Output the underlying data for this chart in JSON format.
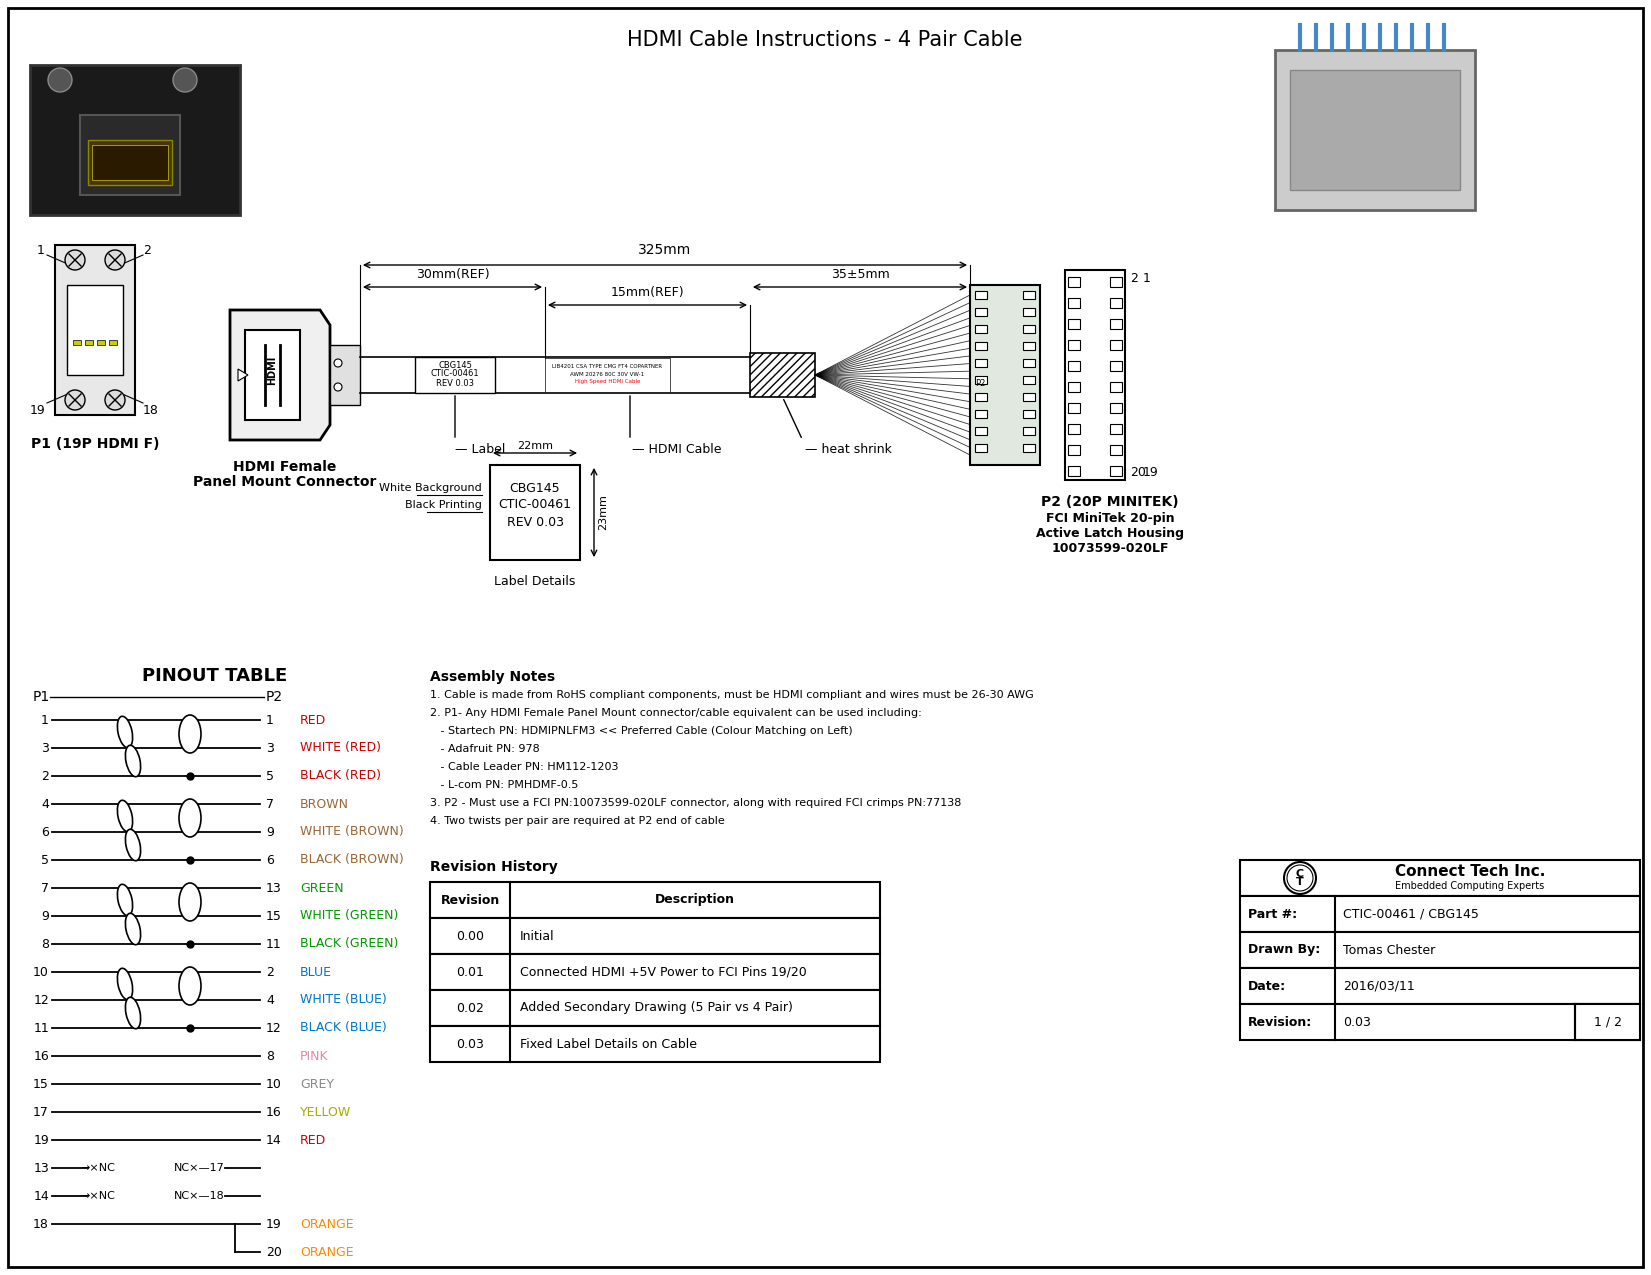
{
  "title": "HDMI Cable Instructions - 4 Pair Cable",
  "bg": "#ffffff",
  "pinout_title": "PINOUT TABLE",
  "p1_label": "P1 (19P HDMI F)",
  "p2_label": "P2 (20P MINITEK)",
  "p2_desc1": "FCI MiniTek 20-pin",
  "p2_desc2": "Active Latch Housing",
  "p2_desc3": "10073599-020LF",
  "connector_label_line1": "HDMI Female",
  "connector_label_line2": "Panel Mount Connector",
  "pinout_rows": [
    {
      "p1": "1",
      "p2": "1",
      "label": "RED",
      "color": "#cc0000"
    },
    {
      "p1": "3",
      "p2": "3",
      "label": "WHITE (RED)",
      "color": "#cc0000"
    },
    {
      "p1": "2",
      "p2": "5",
      "label": "BLACK (RED)",
      "color": "#cc0000"
    },
    {
      "p1": "4",
      "p2": "7",
      "label": "BROWN",
      "color": "#996633"
    },
    {
      "p1": "6",
      "p2": "9",
      "label": "WHITE (BROWN)",
      "color": "#996633"
    },
    {
      "p1": "5",
      "p2": "6",
      "label": "BLACK (BROWN)",
      "color": "#996633"
    },
    {
      "p1": "7",
      "p2": "13",
      "label": "GREEN",
      "color": "#009900"
    },
    {
      "p1": "9",
      "p2": "15",
      "label": "WHITE (GREEN)",
      "color": "#009900"
    },
    {
      "p1": "8",
      "p2": "11",
      "label": "BLACK (GREEN)",
      "color": "#009900"
    },
    {
      "p1": "10",
      "p2": "2",
      "label": "BLUE",
      "color": "#0077cc"
    },
    {
      "p1": "12",
      "p2": "4",
      "label": "WHITE (BLUE)",
      "color": "#0077cc"
    },
    {
      "p1": "11",
      "p2": "12",
      "label": "BLACK (BLUE)",
      "color": "#0077cc"
    },
    {
      "p1": "16",
      "p2": "8",
      "label": "PINK",
      "color": "#dd88aa"
    },
    {
      "p1": "15",
      "p2": "10",
      "label": "GREY",
      "color": "#888888"
    },
    {
      "p1": "17",
      "p2": "16",
      "label": "YELLOW",
      "color": "#aaaa00"
    },
    {
      "p1": "19",
      "p2": "14",
      "label": "RED",
      "color": "#cc0000"
    }
  ],
  "nc_rows": [
    {
      "p1": "13",
      "p2": "17"
    },
    {
      "p1": "14",
      "p2": "18"
    }
  ],
  "orange_p1": "18",
  "orange_p2a": "19",
  "orange_p2b": "20",
  "orange_label": "ORANGE",
  "orange_color": "#ff8800",
  "assembly_title": "Assembly Notes",
  "assembly_notes": [
    "1. Cable is made from RoHS compliant components, must be HDMI compliant and wires must be 26-30 AWG",
    "2. P1- Any HDMI Female Panel Mount connector/cable equivalent can be used including:",
    "   - Startech PN: HDMIPNLFM3 << Preferred Cable (Colour Matching on Left)",
    "   - Adafruit PN: 978",
    "   - Cable Leader PN: HM112-1203",
    "   - L-com PN: PMHDMF-0.5",
    "3. P2 - Must use a FCI PN:10073599-020LF connector, along with required FCI crimps PN:77138",
    "4. Two twists per pair are required at P2 end of cable"
  ],
  "revision_title": "Revision History",
  "revisions": [
    {
      "rev": "0.00",
      "desc": "Initial"
    },
    {
      "rev": "0.01",
      "desc": "Connected HDMI +5V Power to FCI Pins 19/20"
    },
    {
      "rev": "0.02",
      "desc": "Added Secondary Drawing (5 Pair vs 4 Pair)"
    },
    {
      "rev": "0.03",
      "desc": "Fixed Label Details on Cable"
    }
  ],
  "tb_company": "Connect Tech Inc.",
  "tb_subtitle": "Embedded Computing Experts",
  "tb_part": "CTIC-00461 / CBG145",
  "tb_drawn": "Tomas Chester",
  "tb_date": "2016/03/11",
  "tb_rev": "0.03",
  "tb_page": "1 / 2",
  "dim_325": "325mm",
  "dim_30": "30mm(REF)",
  "dim_15": "15mm(REF)",
  "dim_35": "35±5mm",
  "dim_22": "22mm",
  "dim_23": "23mm",
  "lbl_line1": "CBG145",
  "lbl_line2": "CTIC-00461",
  "lbl_line3": "REV 0.03",
  "lbl_note1": "White Background",
  "lbl_note2": "Black Printing",
  "lbl_title": "Label Details",
  "cable_txt1": "LIB4201 CSA TYPE CMG FT4 COPARTNER",
  "cable_txt2": "AWM 20276 80C 30V VW-1",
  "cable_txt3": "High Speed HDMI Cable",
  "lbl_cable": "— HDMI Cable",
  "lbl_heatshrink": "— heat shrink",
  "lbl_label": "— Label"
}
